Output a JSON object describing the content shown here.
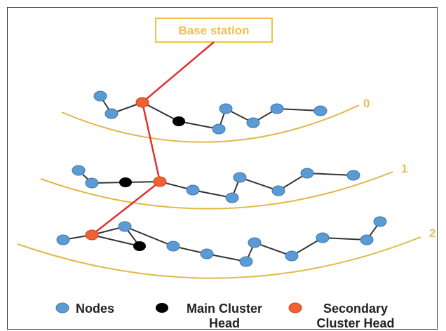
{
  "base_station": {
    "label": "Base station"
  },
  "layers": [
    {
      "label": "0"
    },
    {
      "label": "1"
    },
    {
      "label": "2"
    }
  ],
  "legend": [
    {
      "icon": "node-icon",
      "color": "#5b9bd5",
      "lines": [
        "Nodes"
      ]
    },
    {
      "icon": "main-cluster-head-icon",
      "color": "#000000",
      "lines": [
        "Main Cluster",
        "Head"
      ]
    },
    {
      "icon": "secondary-cluster-head-icon",
      "color": "#f06030",
      "lines": [
        "Secondary",
        "Cluster Head"
      ]
    }
  ],
  "colors": {
    "node": "#5b9bd5",
    "main_cluster_head": "#000000",
    "secondary_cluster_head": "#f06030",
    "link": "#333333",
    "route": "#e03030",
    "layer_curve": "#e2b84a",
    "base_station_border": "#f0c04a"
  }
}
